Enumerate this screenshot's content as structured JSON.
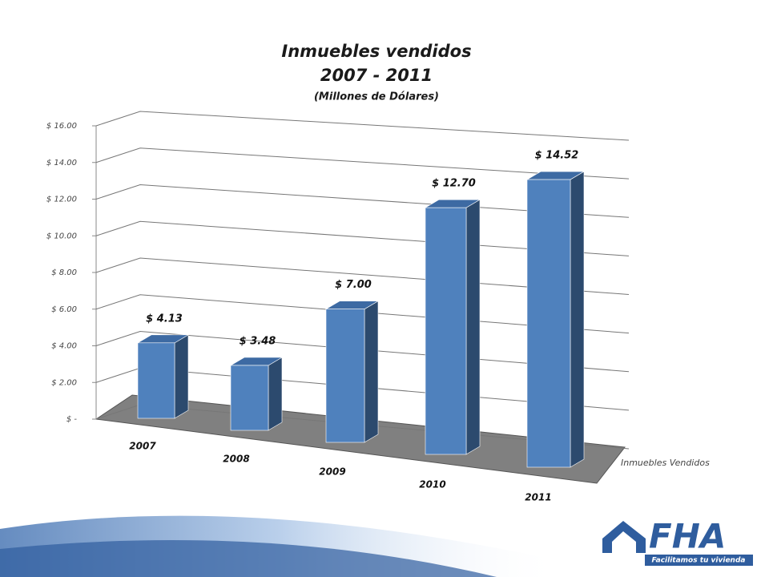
{
  "chart_data": {
    "type": "bar3d",
    "title": "Inmuebles vendidos",
    "subtitle": "2007 - 2011",
    "unit_note": "(Millones de Dólares)",
    "categories": [
      "2007",
      "2008",
      "2009",
      "2010",
      "2011"
    ],
    "series": [
      {
        "name": "Inmuebles Vendidos",
        "color": "#4f81bd",
        "values": [
          4.13,
          3.48,
          7.0,
          12.7,
          14.52
        ],
        "value_labels": [
          "$ 4.13",
          "$ 3.48",
          "$ 7.00",
          "$ 12.70",
          "$ 14.52"
        ]
      }
    ],
    "ylim": [
      0,
      16
    ],
    "yticks": [
      {
        "value": 0,
        "label": "$ -"
      },
      {
        "value": 2,
        "label": "$ 2.00"
      },
      {
        "value": 4,
        "label": "$ 4.00"
      },
      {
        "value": 6,
        "label": "$ 6.00"
      },
      {
        "value": 8,
        "label": "$ 8.00"
      },
      {
        "value": 10,
        "label": "$ 10.00"
      },
      {
        "value": 12,
        "label": "$ 12.00"
      },
      {
        "value": 14,
        "label": "$ 14.00"
      },
      {
        "value": 16,
        "label": "$ 16.00"
      }
    ],
    "grid": true
  },
  "logo": {
    "name": "FHA",
    "tagline": "Facilitamos tu vivienda"
  }
}
